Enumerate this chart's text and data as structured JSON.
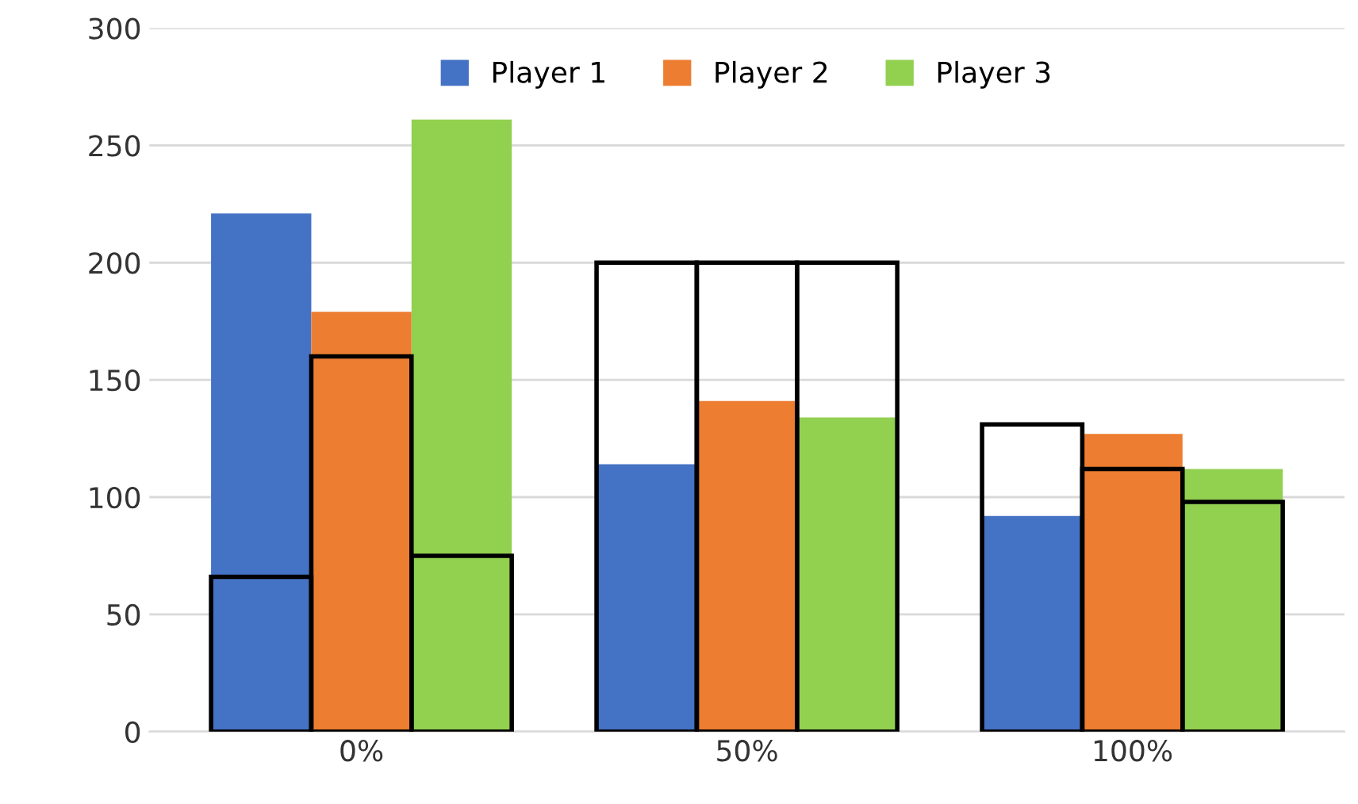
{
  "chart_data": {
    "type": "bar",
    "categories": [
      "0%",
      "50%",
      "100%"
    ],
    "series": [
      {
        "name": "Player 1",
        "color": "#4472c4",
        "values": [
          221,
          114,
          92
        ]
      },
      {
        "name": "Player 2",
        "color": "#ed7d31",
        "values": [
          179,
          141,
          127
        ]
      },
      {
        "name": "Player 3",
        "color": "#92d050",
        "values": [
          261,
          134,
          112
        ]
      },
      {
        "color": "#000000",
        "line_style": "solid",
        "values": [
          66,
          200,
          131
        ]
      },
      {
        "color": "#000000",
        "line_style": "solid",
        "values": [
          160,
          200,
          112
        ]
      },
      {
        "color": "#000000",
        "line_style": "solid",
        "values": [
          75,
          200,
          98
        ]
      }
    ],
    "ylim": [
      0,
      300
    ],
    "yticks": [
      0,
      50,
      100,
      150,
      200,
      250,
      300
    ],
    "grid": "y",
    "legend": "top"
  }
}
